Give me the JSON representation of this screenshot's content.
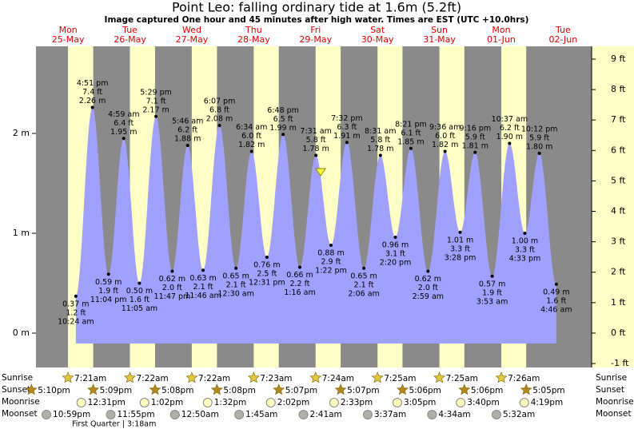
{
  "chart_data": {
    "type": "area",
    "title": "Point Leo: falling  ordinary tide at 1.6m (5.2ft)",
    "subtitle": "Image captured One hour and 45 minutes after high water. Times are EST (UTC +10.0hrs)",
    "color": "#a0a0ff",
    "days": [
      {
        "day": "Mon",
        "date": "25-May"
      },
      {
        "day": "Tue",
        "date": "26-May"
      },
      {
        "day": "Wed",
        "date": "27-May"
      },
      {
        "day": "Thu",
        "date": "28-May"
      },
      {
        "day": "Fri",
        "date": "29-May"
      },
      {
        "day": "Sat",
        "date": "30-May"
      },
      {
        "day": "Sun",
        "date": "31-May"
      },
      {
        "day": "Mon",
        "date": "01-Jun"
      },
      {
        "day": "Tue",
        "date": "02-Jun"
      }
    ],
    "x": [
      "10:24 am",
      "4:51 pm",
      "11:04 pm",
      "4:59 am",
      "11:05 am",
      "5:29 pm",
      "11:47 pm",
      "5:46 am",
      "11:46 am",
      "6:07 pm",
      "12:30 am",
      "6:34 am",
      "12:31 pm",
      "6:48 pm",
      "1:16 am",
      "7:31 am",
      "1:22 pm",
      "7:32 pm",
      "2:06 am",
      "8:31 am",
      "2:20 pm",
      "8:21 pm",
      "2:59 am",
      "9:36 am",
      "3:28 pm",
      "9:16 pm",
      "3:53 am",
      "10:37 am",
      "4:33 pm",
      "10:12 pm",
      "4:46 am"
    ],
    "values": [
      0.37,
      2.26,
      0.59,
      1.95,
      0.5,
      2.17,
      0.62,
      1.88,
      0.63,
      2.08,
      0.65,
      1.82,
      0.76,
      1.99,
      0.66,
      1.78,
      0.88,
      1.91,
      0.65,
      1.78,
      0.96,
      1.85,
      0.62,
      1.82,
      1.01,
      1.81,
      0.57,
      1.9,
      1.0,
      1.8,
      0.49
    ],
    "value_labels": [
      "0.37 m",
      "2.26 m",
      "0.59 m",
      "1.95 m",
      "0.50 m",
      "2.17 m",
      "0.62 m",
      "1.88 m",
      "0.63 m",
      "2.08 m",
      "0.65 m",
      "1.82 m",
      "0.76 m",
      "1.99 m",
      "0.66 m",
      "1.78 m",
      "0.88 m",
      "1.91 m",
      "0.65 m",
      "1.78 m",
      "0.96 m",
      "1.85 m",
      "0.62 m",
      "1.82 m",
      "1.01 m",
      "1.81 m",
      "0.57 m",
      "1.90 m",
      "1.00 m",
      "1.80 m",
      "0.49 m"
    ],
    "ft_labels": [
      "1.2 ft",
      "7.4 ft",
      "1.9 ft",
      "6.4 ft",
      "1.6 ft",
      "7.1 ft",
      "2.0 ft",
      "6.2 ft",
      "2.1 ft",
      "6.8 ft",
      "2.1 ft",
      "6.0 ft",
      "2.5 ft",
      "6.5 ft",
      "2.2 ft",
      "5.8 ft",
      "2.9 ft",
      "6.3 ft",
      "2.1 ft",
      "5.8 ft",
      "3.1 ft",
      "6.1 ft",
      "2.0 ft",
      "6.0 ft",
      "3.3 ft",
      "5.9 ft",
      "1.9 ft",
      "6.2 ft",
      "3.3 ft",
      "5.9 ft",
      "1.6 ft"
    ],
    "ylim": [
      -0.344,
      2.872
    ],
    "yticks": [
      {
        "value": 0,
        "label": "0 m"
      },
      {
        "value": 1,
        "label": "1 m"
      },
      {
        "value": 2,
        "label": "2 m"
      }
    ],
    "y2lim": [
      -1.13,
      9.42
    ],
    "y2ticks": [
      {
        "value": -1,
        "label": "-1 ft"
      },
      {
        "value": 0,
        "label": "0 ft"
      },
      {
        "value": 1,
        "label": "1 ft"
      },
      {
        "value": 2,
        "label": "2 ft"
      },
      {
        "value": 3,
        "label": "3 ft"
      },
      {
        "value": 4,
        "label": "4 ft"
      },
      {
        "value": 5,
        "label": "5 ft"
      },
      {
        "value": 6,
        "label": "6 ft"
      },
      {
        "value": 7,
        "label": "7 ft"
      },
      {
        "value": 8,
        "label": "8 ft"
      },
      {
        "value": 9,
        "label": "9 ft"
      }
    ],
    "events": [
      {
        "name": "Sunrise",
        "times": [
          "7:21am",
          "7:22am",
          "7:22am",
          "7:23am",
          "7:24am",
          "7:25am",
          "7:25am",
          "7:26am"
        ]
      },
      {
        "name": "Sunset",
        "times": [
          "5:10pm",
          "5:09pm",
          "5:08pm",
          "5:08pm",
          "5:07pm",
          "5:07pm",
          "5:06pm",
          "5:06pm",
          "5:05pm"
        ]
      },
      {
        "name": "Moonrise",
        "times": [
          "12:31pm",
          "1:02pm",
          "1:32pm",
          "2:02pm",
          "2:33pm",
          "3:05pm",
          "3:40pm",
          "4:19pm"
        ]
      },
      {
        "name": "Moonset",
        "times": [
          "10:59pm",
          "11:55pm",
          "12:50am",
          "1:45am",
          "2:41am",
          "3:37am",
          "4:34am",
          "5:32am"
        ]
      }
    ],
    "moon_phase": "First Quarter | 3:18am"
  }
}
